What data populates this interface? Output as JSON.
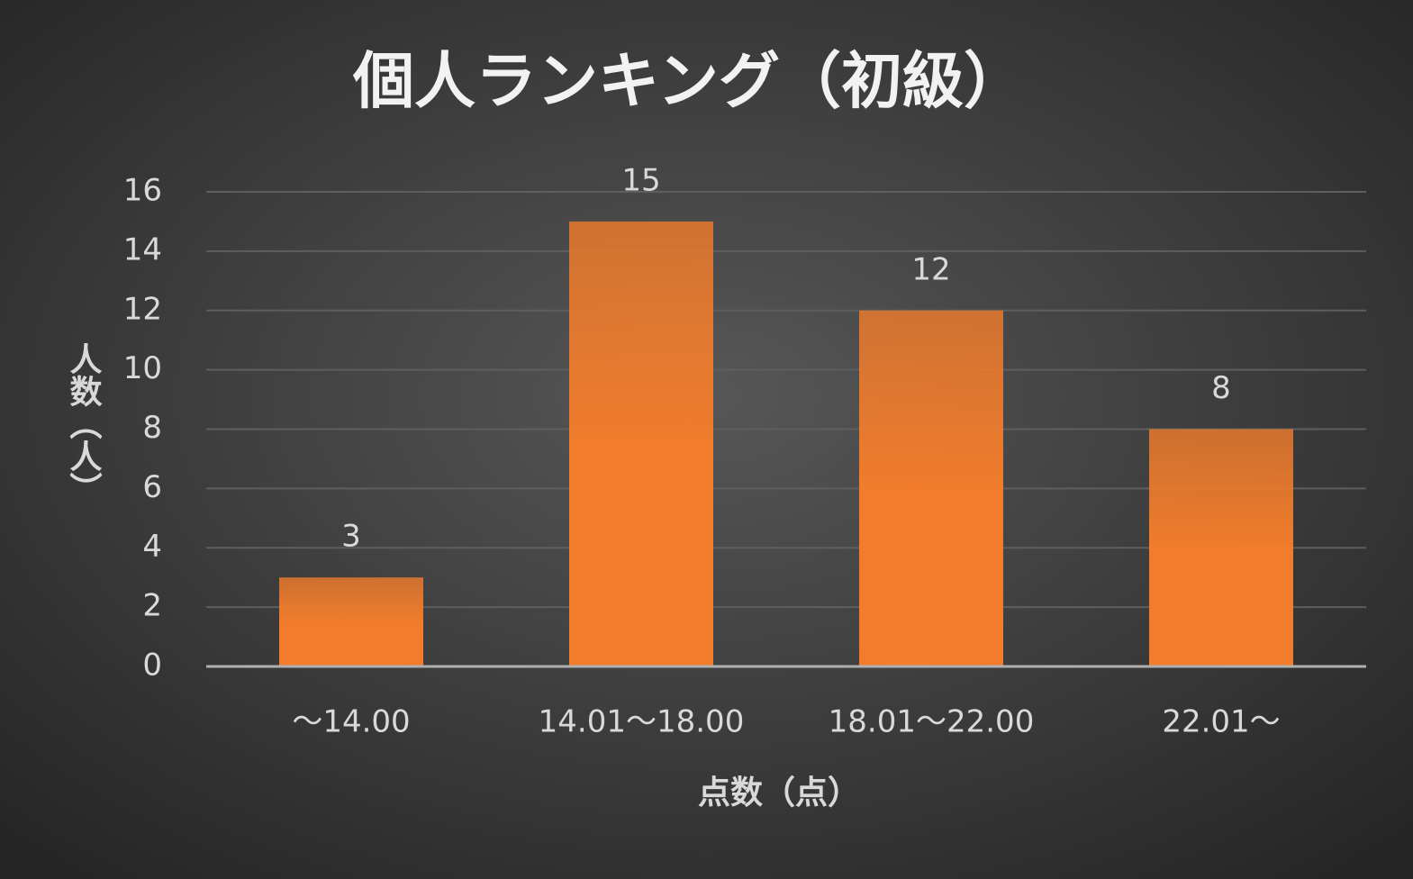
{
  "chart_data": {
    "type": "bar",
    "title": "個人ランキング（初級）",
    "categories": [
      "～14.00",
      "14.01～18.00",
      "18.01～22.00",
      "22.01～"
    ],
    "values": [
      3,
      15,
      12,
      8
    ],
    "color": "#f07c2c",
    "x_label": "点数（点）",
    "y_label": "人数（人）",
    "ylim": [
      0,
      16
    ],
    "yticks": [
      0,
      2,
      4,
      6,
      8,
      10,
      12,
      14,
      16
    ],
    "grid": true
  }
}
